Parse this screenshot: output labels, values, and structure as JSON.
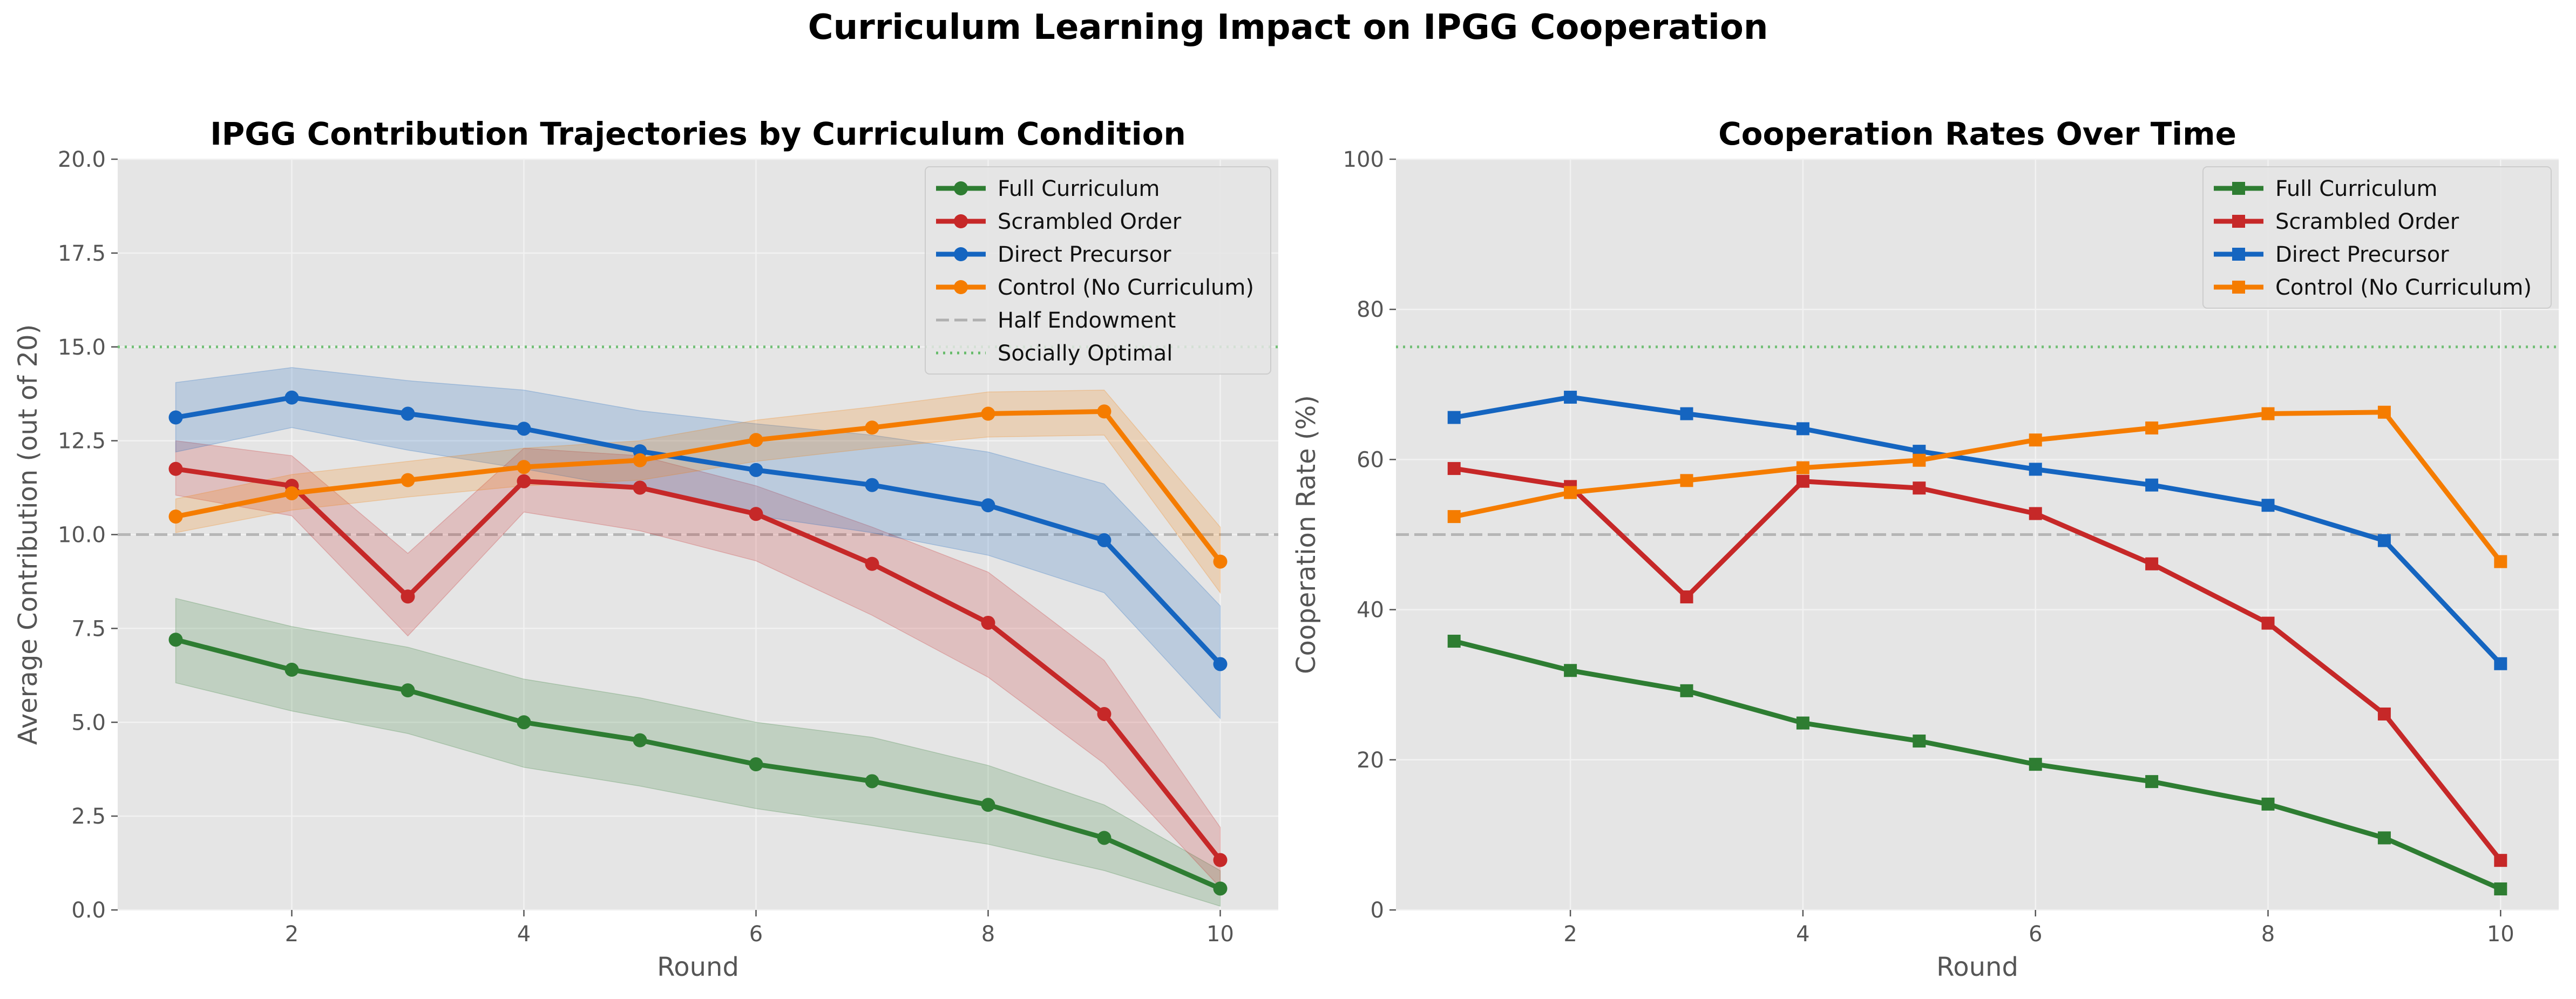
{
  "suptitle": "Curriculum Learning Impact on IPGG Cooperation",
  "colors": {
    "full": "#2e7d32",
    "scrambled": "#c62828",
    "direct": "#1565c0",
    "control": "#f57c00",
    "half_line": "#b0b0b0",
    "optimal_line": "#66bb6a",
    "plot_bg": "#e5e5e5",
    "grid": "#f2f2f2"
  },
  "chart_data": [
    {
      "type": "line",
      "title": "IPGG Contribution Trajectories by Curriculum Condition",
      "xlabel": "Round",
      "ylabel": "Average Contribution (out of 20)",
      "xlim": [
        0.5,
        10.5
      ],
      "ylim": [
        0,
        20
      ],
      "xticks": [
        2,
        4,
        6,
        8,
        10
      ],
      "xtick_labels": [
        "2",
        "4",
        "6",
        "8",
        "10"
      ],
      "yticks": [
        0,
        2.5,
        5,
        7.5,
        10,
        12.5,
        15,
        17.5,
        20
      ],
      "ytick_labels": [
        "0.0",
        "2.5",
        "5.0",
        "7.5",
        "10.0",
        "12.5",
        "15.0",
        "17.5",
        "20.0"
      ],
      "grid": true,
      "legend_position": "top-right",
      "x": [
        1,
        2,
        3,
        4,
        5,
        6,
        7,
        8,
        9,
        10
      ],
      "marker": "circle",
      "series": [
        {
          "key": "full",
          "name": "Full Curriculum",
          "values": [
            7.2,
            6.4,
            5.85,
            5.0,
            4.52,
            3.88,
            3.43,
            2.8,
            1.92,
            0.57
          ],
          "lower": [
            6.05,
            5.3,
            4.7,
            3.8,
            3.3,
            2.7,
            2.25,
            1.75,
            1.05,
            0.1
          ],
          "upper": [
            8.3,
            7.55,
            7.0,
            6.15,
            5.65,
            5.0,
            4.6,
            3.85,
            2.8,
            1.05
          ]
        },
        {
          "key": "scrambled",
          "name": "Scrambled Order",
          "values": [
            11.75,
            11.3,
            8.35,
            11.42,
            11.25,
            10.55,
            9.22,
            7.65,
            5.22,
            1.33
          ],
          "lower": [
            11.05,
            10.5,
            7.3,
            10.6,
            10.1,
            9.3,
            7.85,
            6.2,
            3.9,
            0.6
          ],
          "upper": [
            12.5,
            12.1,
            9.5,
            12.3,
            12.1,
            11.3,
            10.2,
            9.0,
            6.65,
            2.2
          ]
        },
        {
          "key": "direct",
          "name": "Direct Precursor",
          "values": [
            13.12,
            13.65,
            13.22,
            12.82,
            12.22,
            11.72,
            11.32,
            10.78,
            9.85,
            6.55
          ],
          "lower": [
            12.2,
            12.85,
            12.25,
            11.75,
            11.2,
            10.5,
            10.05,
            9.45,
            8.45,
            5.1
          ],
          "upper": [
            14.05,
            14.45,
            14.1,
            13.85,
            13.3,
            12.95,
            12.65,
            12.2,
            11.35,
            8.1
          ]
        },
        {
          "key": "control",
          "name": "Control (No Curriculum)",
          "values": [
            10.48,
            11.1,
            11.45,
            11.8,
            11.98,
            12.52,
            12.85,
            13.22,
            13.28,
            9.28
          ],
          "lower": [
            10.05,
            10.65,
            11.0,
            11.3,
            11.45,
            11.95,
            12.3,
            12.6,
            12.65,
            8.45
          ],
          "upper": [
            10.95,
            11.6,
            11.95,
            12.3,
            12.5,
            13.05,
            13.4,
            13.8,
            13.85,
            10.2
          ]
        }
      ],
      "reference_lines": [
        {
          "key": "half",
          "name": "Half Endowment",
          "value": 10,
          "style": "dashed"
        },
        {
          "key": "optimal",
          "name": "Socially Optimal",
          "value": 15,
          "style": "dotted"
        }
      ]
    },
    {
      "type": "line",
      "title": "Cooperation Rates Over Time",
      "xlabel": "Round",
      "ylabel": "Cooperation Rate (%)",
      "xlim": [
        0.5,
        10.5
      ],
      "ylim": [
        0,
        100
      ],
      "xticks": [
        2,
        4,
        6,
        8,
        10
      ],
      "xtick_labels": [
        "2",
        "4",
        "6",
        "8",
        "10"
      ],
      "yticks": [
        0,
        20,
        40,
        60,
        80,
        100
      ],
      "ytick_labels": [
        "0",
        "20",
        "40",
        "60",
        "80",
        "100"
      ],
      "grid": true,
      "legend_position": "top-right",
      "x": [
        1,
        2,
        3,
        4,
        5,
        6,
        7,
        8,
        9,
        10
      ],
      "marker": "square",
      "series": [
        {
          "key": "full",
          "name": "Full Curriculum",
          "values": [
            35.8,
            31.9,
            29.2,
            24.9,
            22.5,
            19.4,
            17.1,
            14.1,
            9.6,
            2.8
          ]
        },
        {
          "key": "scrambled",
          "name": "Scrambled Order",
          "values": [
            58.8,
            56.4,
            41.7,
            57.1,
            56.2,
            52.8,
            46.1,
            38.2,
            26.1,
            6.6
          ]
        },
        {
          "key": "direct",
          "name": "Direct Precursor",
          "values": [
            65.6,
            68.3,
            66.1,
            64.1,
            61.1,
            58.7,
            56.6,
            53.9,
            49.2,
            32.8
          ]
        },
        {
          "key": "control",
          "name": "Control (No Curriculum)",
          "values": [
            52.4,
            55.6,
            57.2,
            58.9,
            59.9,
            62.6,
            64.2,
            66.1,
            66.3,
            46.4
          ]
        }
      ],
      "reference_lines": [
        {
          "key": "half",
          "value": 50,
          "style": "dashed"
        },
        {
          "key": "optimal",
          "value": 75,
          "style": "dotted"
        }
      ]
    }
  ]
}
